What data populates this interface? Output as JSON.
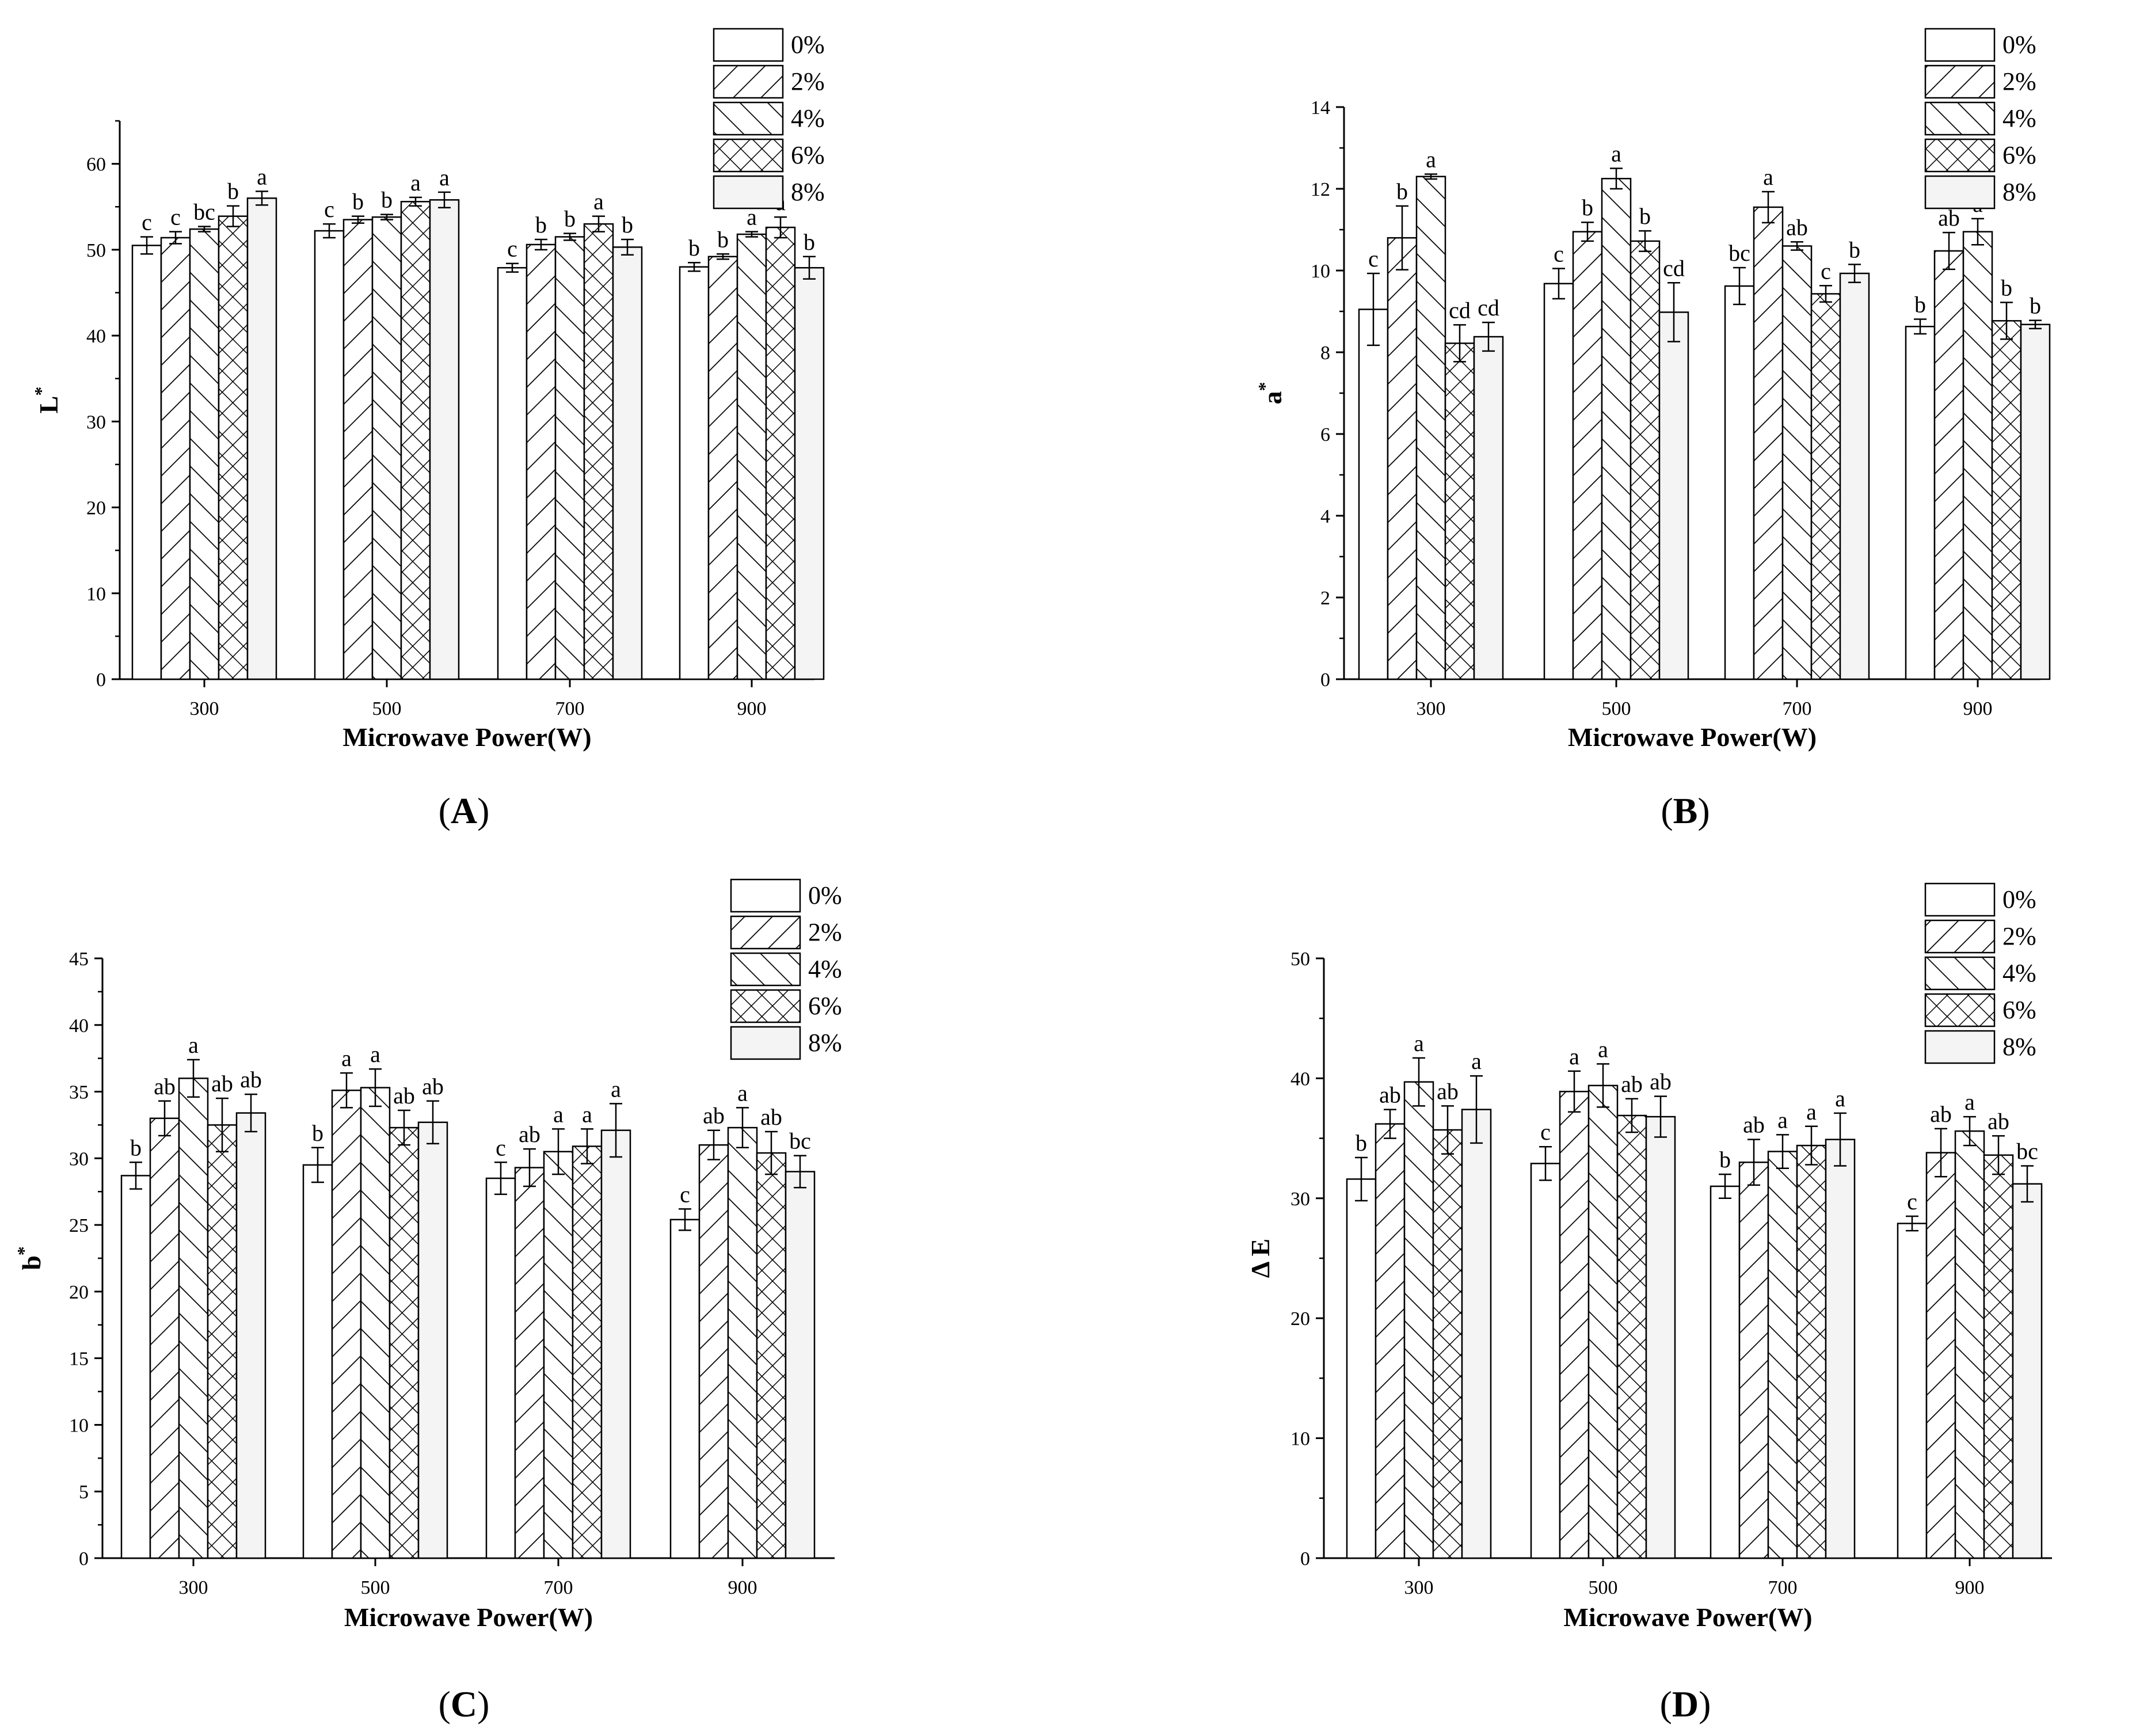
{
  "figure": {
    "legend": [
      "0%",
      "2%",
      "4%",
      "6%",
      "8%"
    ]
  },
  "chart_data": [
    {
      "type": "bar",
      "panel": "A",
      "panel_label": "(A)",
      "ylabel": "L",
      "ylabel_superscript": "*",
      "xlabel": "Microwave Power(W)",
      "categories": [
        "300",
        "500",
        "700",
        "900"
      ],
      "ylim": [
        0,
        65
      ],
      "yticks": [
        0,
        10,
        20,
        30,
        40,
        50,
        60
      ],
      "series": [
        {
          "name": "0%",
          "values": [
            50.5,
            52.2,
            47.9,
            48.0
          ],
          "errors": [
            1.0,
            0.8,
            0.5,
            0.5
          ],
          "letters": [
            "c",
            "c",
            "c",
            "b"
          ]
        },
        {
          "name": "2%",
          "values": [
            51.4,
            53.5,
            50.6,
            49.2
          ],
          "errors": [
            0.7,
            0.4,
            0.6,
            0.3
          ],
          "letters": [
            "c",
            "b",
            "b",
            "b"
          ]
        },
        {
          "name": "4%",
          "values": [
            52.4,
            53.8,
            51.5,
            51.8
          ],
          "errors": [
            0.3,
            0.3,
            0.4,
            0.3
          ],
          "letters": [
            "bc",
            "b",
            "b",
            "a"
          ]
        },
        {
          "name": "6%",
          "values": [
            53.9,
            55.6,
            53.0,
            52.6
          ],
          "errors": [
            1.2,
            0.5,
            0.9,
            1.2
          ],
          "letters": [
            "b",
            "a",
            "a",
            "a"
          ]
        },
        {
          "name": "8%",
          "values": [
            56.0,
            55.8,
            50.3,
            47.9
          ],
          "errors": [
            0.8,
            0.9,
            0.9,
            1.3
          ],
          "letters": [
            "a",
            "a",
            "b",
            "b"
          ]
        }
      ]
    },
    {
      "type": "bar",
      "panel": "B",
      "panel_label": "(B)",
      "ylabel": "a",
      "ylabel_superscript": "*",
      "xlabel": "Microwave Power(W)",
      "categories": [
        "300",
        "500",
        "700",
        "900"
      ],
      "ylim": [
        0,
        14
      ],
      "yticks": [
        0,
        2,
        4,
        6,
        8,
        10,
        12,
        14
      ],
      "series": [
        {
          "name": "0%",
          "values": [
            9.05,
            9.68,
            9.62,
            8.63
          ],
          "errors": [
            0.88,
            0.37,
            0.45,
            0.18
          ],
          "letters": [
            "c",
            "c",
            "bc",
            "b"
          ]
        },
        {
          "name": "2%",
          "values": [
            10.8,
            10.95,
            11.55,
            10.48
          ],
          "errors": [
            0.78,
            0.23,
            0.38,
            0.45
          ],
          "letters": [
            "b",
            "b",
            "a",
            "ab"
          ]
        },
        {
          "name": "4%",
          "values": [
            12.3,
            12.25,
            10.6,
            10.95
          ],
          "errors": [
            0.06,
            0.25,
            0.1,
            0.32
          ],
          "letters": [
            "a",
            "a",
            "ab",
            "a"
          ]
        },
        {
          "name": "6%",
          "values": [
            8.22,
            10.72,
            9.43,
            8.77
          ],
          "errors": [
            0.45,
            0.25,
            0.2,
            0.45
          ],
          "letters": [
            "cd",
            "b",
            "c",
            "b"
          ]
        },
        {
          "name": "8%",
          "values": [
            8.38,
            8.98,
            9.93,
            8.68
          ],
          "errors": [
            0.35,
            0.72,
            0.22,
            0.1
          ],
          "letters": [
            "cd",
            "cd",
            "b",
            "b"
          ]
        }
      ]
    },
    {
      "type": "bar",
      "panel": "C",
      "panel_label": "(C)",
      "ylabel": "b",
      "ylabel_superscript": "*",
      "xlabel": "Microwave Power(W)",
      "categories": [
        "300",
        "500",
        "700",
        "900"
      ],
      "ylim": [
        0,
        45
      ],
      "yticks": [
        0,
        5,
        10,
        15,
        20,
        25,
        30,
        35,
        40,
        45
      ],
      "series": [
        {
          "name": "0%",
          "values": [
            28.7,
            29.5,
            28.5,
            25.4
          ],
          "errors": [
            1.0,
            1.3,
            1.2,
            0.8
          ],
          "letters": [
            "b",
            "b",
            "c",
            "c"
          ]
        },
        {
          "name": "2%",
          "values": [
            33.0,
            35.1,
            29.3,
            31.0
          ],
          "errors": [
            1.3,
            1.3,
            1.4,
            1.1
          ],
          "letters": [
            "ab",
            "a",
            "ab",
            "ab"
          ]
        },
        {
          "name": "4%",
          "values": [
            36.0,
            35.3,
            30.5,
            32.3
          ],
          "errors": [
            1.4,
            1.4,
            1.7,
            1.5
          ],
          "letters": [
            "a",
            "a",
            "a",
            "a"
          ]
        },
        {
          "name": "6%",
          "values": [
            32.5,
            32.3,
            30.9,
            30.4
          ],
          "errors": [
            2.0,
            1.3,
            1.3,
            1.6
          ],
          "letters": [
            "ab",
            "ab",
            "a",
            "ab"
          ]
        },
        {
          "name": "8%",
          "values": [
            33.4,
            32.7,
            32.1,
            29.0
          ],
          "errors": [
            1.4,
            1.6,
            2.0,
            1.2
          ],
          "letters": [
            "ab",
            "ab",
            "a",
            "bc"
          ]
        }
      ]
    },
    {
      "type": "bar",
      "panel": "D",
      "panel_label": "(D)",
      "ylabel": "Δ E",
      "ylabel_superscript": "",
      "xlabel": "Microwave Power(W)",
      "categories": [
        "300",
        "500",
        "700",
        "900"
      ],
      "ylim": [
        0,
        50
      ],
      "yticks": [
        0,
        10,
        20,
        30,
        40,
        50
      ],
      "series": [
        {
          "name": "0%",
          "values": [
            31.6,
            32.9,
            31.0,
            27.9
          ],
          "errors": [
            1.8,
            1.4,
            1.0,
            0.6
          ],
          "letters": [
            "b",
            "c",
            "b",
            "c"
          ]
        },
        {
          "name": "2%",
          "values": [
            36.2,
            38.9,
            33.0,
            33.8
          ],
          "errors": [
            1.2,
            1.7,
            1.9,
            2.0
          ],
          "letters": [
            "ab",
            "a",
            "ab",
            "ab"
          ]
        },
        {
          "name": "4%",
          "values": [
            39.7,
            39.4,
            33.9,
            35.6
          ],
          "errors": [
            2.0,
            1.8,
            1.4,
            1.2
          ],
          "letters": [
            "a",
            "a",
            "a",
            "a"
          ]
        },
        {
          "name": "6%",
          "values": [
            35.7,
            36.9,
            34.4,
            33.6
          ],
          "errors": [
            2.0,
            1.4,
            1.6,
            1.6
          ],
          "letters": [
            "ab",
            "ab",
            "a",
            "ab"
          ]
        },
        {
          "name": "8%",
          "values": [
            37.4,
            36.8,
            34.9,
            31.2
          ],
          "errors": [
            2.8,
            1.7,
            2.2,
            1.5
          ],
          "letters": [
            "a",
            "ab",
            "a",
            "bc"
          ]
        }
      ]
    }
  ]
}
